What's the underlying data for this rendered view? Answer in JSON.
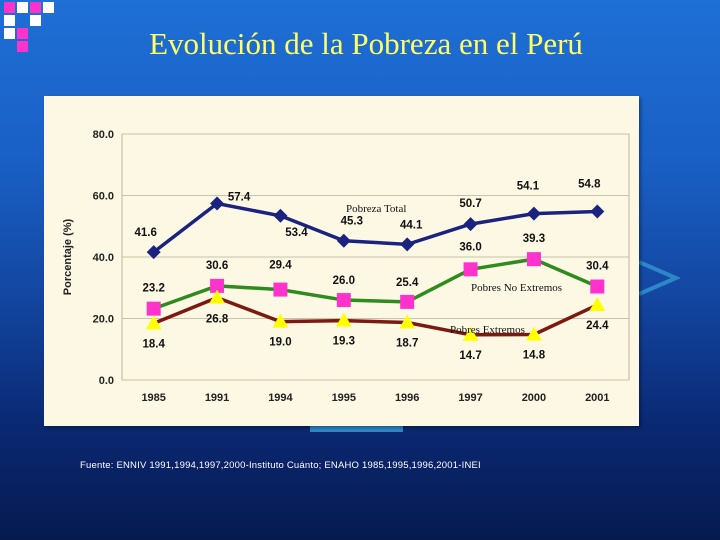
{
  "slide": {
    "title": "Evolución de la Pobreza en el Perú",
    "source": "Fuente: ENNIV 1991,1994,1997,2000-Instituto Cuánto; ENAHO 1985,1995,1996,2001-INEI"
  },
  "colors": {
    "total": "#1a237e",
    "no_extremos": "#2e8b1e",
    "extremos": "#7a1a10",
    "square_marker": "#ff33cc",
    "triangle_marker": "#ffff00",
    "title": "#ffff66"
  },
  "chart_data": {
    "type": "line",
    "title": "",
    "xlabel": "",
    "ylabel": "Porcentaje (%)",
    "ylim": [
      0,
      80
    ],
    "yticks": [
      "0.0",
      "20.0",
      "40.0",
      "60.0",
      "80.0"
    ],
    "categories": [
      "1985",
      "1991",
      "1994",
      "1995",
      "1996",
      "1997",
      "2000",
      "2001"
    ],
    "series": [
      {
        "name": "Pobreza Total",
        "marker": "diamond",
        "values": [
          41.6,
          57.4,
          53.4,
          45.3,
          44.1,
          50.7,
          54.1,
          54.8
        ],
        "labels": [
          "41.6",
          "57.4",
          "53.4",
          "45.3",
          "44.1",
          "50.7",
          "54.1",
          "54.8"
        ]
      },
      {
        "name": "Pobres No  Extremos",
        "marker": "square",
        "values": [
          23.2,
          30.6,
          29.4,
          26.0,
          25.4,
          36.0,
          39.3,
          30.4
        ],
        "labels": [
          "23.2",
          "30.6",
          "29.4",
          "26.0",
          "25.4",
          "36.0",
          "39.3",
          "30.4"
        ]
      },
      {
        "name": "Pobres Extremos",
        "marker": "triangle",
        "values": [
          18.4,
          26.8,
          19.0,
          19.3,
          18.7,
          14.7,
          14.8,
          24.4
        ],
        "labels": [
          "18.4",
          "26.8",
          "19.0",
          "19.3",
          "18.7",
          "14.7",
          "14.8",
          "24.4"
        ]
      }
    ]
  }
}
